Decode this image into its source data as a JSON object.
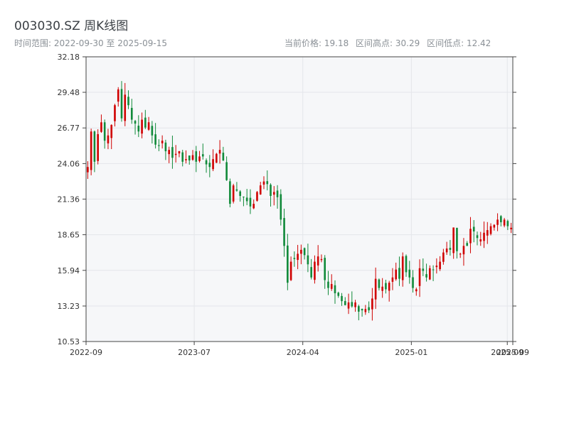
{
  "header": {
    "title": "003030.SZ 周K线图",
    "range_text": "时间范围: 2022-09-30 至 2025-09-15",
    "current_price": "当前价格: 19.18",
    "high": "区间高点: 30.29",
    "low": "区间低点: 12.42"
  },
  "colors": {
    "up": "#d00000",
    "down": "#118a3a",
    "plot_bg": "#f6f7f9",
    "grid": "#e4e6ea",
    "axis": "#444444"
  },
  "chart_data": {
    "type": "candlestick",
    "title": "003030.SZ 周K线图",
    "x_ticks": [
      "2022-09",
      "2023-07",
      "2024-04",
      "2025-01",
      "2025-09",
      "2025-09"
    ],
    "x_tick_dates": [
      "2022-09-30",
      "2023-07-01",
      "2024-04-01",
      "2025-01-01",
      "2025-09-01",
      "2025-09-15"
    ],
    "y_ticks": [
      "10.53",
      "13.23",
      "15.94",
      "18.65",
      "21.36",
      "24.06",
      "26.77",
      "29.48",
      "32.18"
    ],
    "ylim": [
      10.53,
      32.18
    ],
    "xlim": [
      "2022-09-30",
      "2025-09-15"
    ],
    "grid": true,
    "approx_closes": [
      23.8,
      26.5,
      24.2,
      26.3,
      27.2,
      25.8,
      26.2,
      27.0,
      28.5,
      29.7,
      27.5,
      29.3,
      28.5,
      27.4,
      27.1,
      26.5,
      27.4,
      26.8,
      27.2,
      26.2,
      25.5,
      25.4,
      25.8,
      25.0,
      25.1,
      24.5,
      24.8,
      25.0,
      24.2,
      24.4,
      24.3,
      24.7,
      24.2,
      24.6,
      24.6,
      24.0,
      23.8,
      24.4,
      24.8,
      25.1,
      24.3,
      22.8,
      21.0,
      22.4,
      22.0,
      21.6,
      21.5,
      21.2,
      20.8,
      21.0,
      21.9,
      22.4,
      22.7,
      22.5,
      21.6,
      21.9,
      21.5,
      19.8,
      17.8,
      15.0,
      16.6,
      16.8,
      17.2,
      17.5,
      17.1,
      16.4,
      15.4,
      16.6,
      17.0,
      16.8,
      15.2,
      14.6,
      14.9,
      14.2,
      14.0,
      13.6,
      13.3,
      13.5,
      13.2,
      13.5,
      12.8,
      12.9,
      13.0,
      12.9,
      13.8,
      15.3,
      14.6,
      14.7,
      14.5,
      15.0,
      15.4,
      16.0,
      15.3,
      17.0,
      15.8,
      15.4,
      14.6,
      14.5,
      16.1,
      15.9,
      15.4,
      16.1,
      16.0,
      16.3,
      16.6,
      17.3,
      17.6,
      17.5,
      19.2,
      17.4,
      17.2,
      17.8,
      17.8,
      19.1,
      18.9,
      18.4,
      18.3,
      18.8,
      19.0,
      19.3,
      19.4,
      19.8,
      19.6,
      19.8,
      19.3,
      19.18
    ]
  }
}
